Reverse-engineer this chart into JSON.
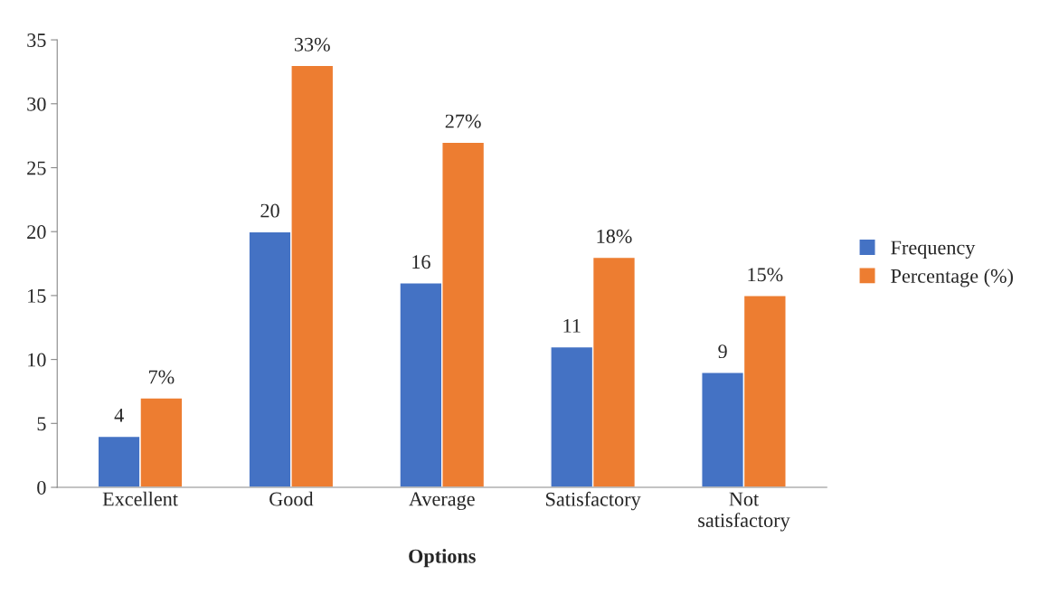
{
  "chart_data": {
    "type": "bar",
    "xlabel": "Options",
    "categories": [
      "Excellent",
      "Good",
      "Average",
      "Satisfactory",
      "Not\nsatisfactory"
    ],
    "series": [
      {
        "name": "Frequency",
        "color": "#4472c4",
        "values": [
          4,
          20,
          16,
          11,
          9
        ],
        "value_labels": [
          "4",
          "20",
          "16",
          "11",
          "9"
        ]
      },
      {
        "name": "Percentage (%)",
        "color": "#ed7d31",
        "values": [
          7,
          33,
          27,
          18,
          15
        ],
        "value_labels": [
          "7%",
          "33%",
          "27%",
          "18%",
          "15%"
        ]
      }
    ],
    "ylim": [
      0,
      35
    ],
    "yticks": [
      0,
      5,
      10,
      15,
      20,
      25,
      30,
      35
    ],
    "grid": false,
    "legend": "right"
  }
}
